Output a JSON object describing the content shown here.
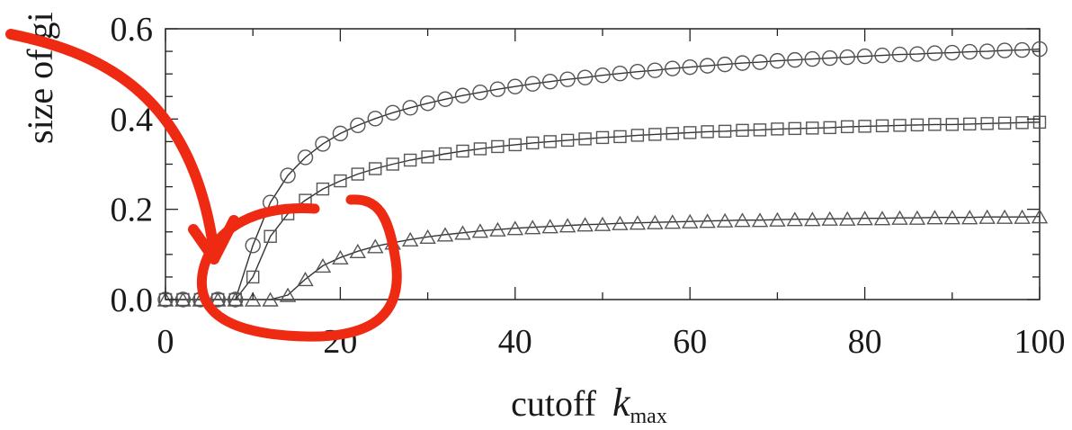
{
  "chart_data": {
    "type": "scatter",
    "title": "",
    "xlabel_main": "cutoff",
    "xlabel_var": "k",
    "xlabel_sub": "max",
    "ylabel_visible": "size of gi",
    "xlim": [
      0,
      100
    ],
    "ylim": [
      0,
      0.6
    ],
    "xticks": [
      "0",
      "20",
      "40",
      "60",
      "80",
      "100"
    ],
    "yticks": [
      "0.0",
      "0.2",
      "0.4",
      "0.6"
    ],
    "grid": false,
    "legend": "none",
    "colors": {
      "markers": "#555555",
      "curves": "#333333",
      "frame": "#222222",
      "annotation": "#ee2a12"
    },
    "series": [
      {
        "marker": "circle",
        "x": [
          0,
          2,
          4,
          6,
          8,
          10,
          12,
          14,
          16,
          18,
          20,
          22,
          24,
          26,
          28,
          30,
          32,
          34,
          36,
          38,
          40,
          42,
          44,
          46,
          48,
          50,
          52,
          54,
          56,
          58,
          60,
          62,
          64,
          66,
          68,
          70,
          72,
          74,
          76,
          78,
          80,
          82,
          84,
          86,
          88,
          90,
          92,
          94,
          96,
          98,
          100
        ],
        "values": [
          0,
          0,
          0,
          0,
          0,
          0.12,
          0.215,
          0.275,
          0.315,
          0.345,
          0.368,
          0.386,
          0.401,
          0.414,
          0.425,
          0.435,
          0.444,
          0.452,
          0.459,
          0.466,
          0.472,
          0.478,
          0.483,
          0.488,
          0.492,
          0.497,
          0.501,
          0.505,
          0.508,
          0.512,
          0.515,
          0.518,
          0.521,
          0.524,
          0.526,
          0.529,
          0.531,
          0.533,
          0.535,
          0.537,
          0.539,
          0.541,
          0.543,
          0.544,
          0.546,
          0.547,
          0.549,
          0.55,
          0.552,
          0.553,
          0.555
        ]
      },
      {
        "marker": "square",
        "x": [
          0,
          2,
          4,
          6,
          8,
          10,
          12,
          14,
          16,
          18,
          20,
          22,
          24,
          26,
          28,
          30,
          32,
          34,
          36,
          38,
          40,
          42,
          44,
          46,
          48,
          50,
          52,
          54,
          56,
          58,
          60,
          62,
          64,
          66,
          68,
          70,
          72,
          74,
          76,
          78,
          80,
          82,
          84,
          86,
          88,
          90,
          92,
          94,
          96,
          98,
          100
        ],
        "values": [
          0,
          0,
          0,
          0,
          0,
          0.05,
          0.14,
          0.19,
          0.22,
          0.245,
          0.263,
          0.278,
          0.29,
          0.3,
          0.309,
          0.316,
          0.323,
          0.329,
          0.334,
          0.339,
          0.343,
          0.347,
          0.35,
          0.353,
          0.356,
          0.359,
          0.361,
          0.364,
          0.366,
          0.368,
          0.37,
          0.372,
          0.373,
          0.375,
          0.376,
          0.378,
          0.379,
          0.38,
          0.381,
          0.383,
          0.384,
          0.385,
          0.386,
          0.387,
          0.388,
          0.388,
          0.389,
          0.39,
          0.391,
          0.392,
          0.393
        ]
      },
      {
        "marker": "triangle",
        "x": [
          0,
          2,
          4,
          6,
          8,
          10,
          12,
          14,
          16,
          18,
          20,
          22,
          24,
          26,
          28,
          30,
          32,
          34,
          36,
          38,
          40,
          42,
          44,
          46,
          48,
          50,
          52,
          54,
          56,
          58,
          60,
          62,
          64,
          66,
          68,
          70,
          72,
          74,
          76,
          78,
          80,
          82,
          84,
          86,
          88,
          90,
          92,
          94,
          96,
          98,
          100
        ],
        "values": [
          0,
          0,
          0,
          0,
          0,
          0,
          0,
          0.01,
          0.045,
          0.075,
          0.093,
          0.107,
          0.118,
          0.126,
          0.133,
          0.139,
          0.144,
          0.148,
          0.152,
          0.155,
          0.158,
          0.16,
          0.162,
          0.164,
          0.166,
          0.167,
          0.169,
          0.17,
          0.171,
          0.172,
          0.173,
          0.174,
          0.175,
          0.176,
          0.176,
          0.177,
          0.178,
          0.178,
          0.179,
          0.179,
          0.18,
          0.18,
          0.181,
          0.181,
          0.182,
          0.182,
          0.182,
          0.183,
          0.183,
          0.183,
          0.184
        ]
      }
    ]
  }
}
